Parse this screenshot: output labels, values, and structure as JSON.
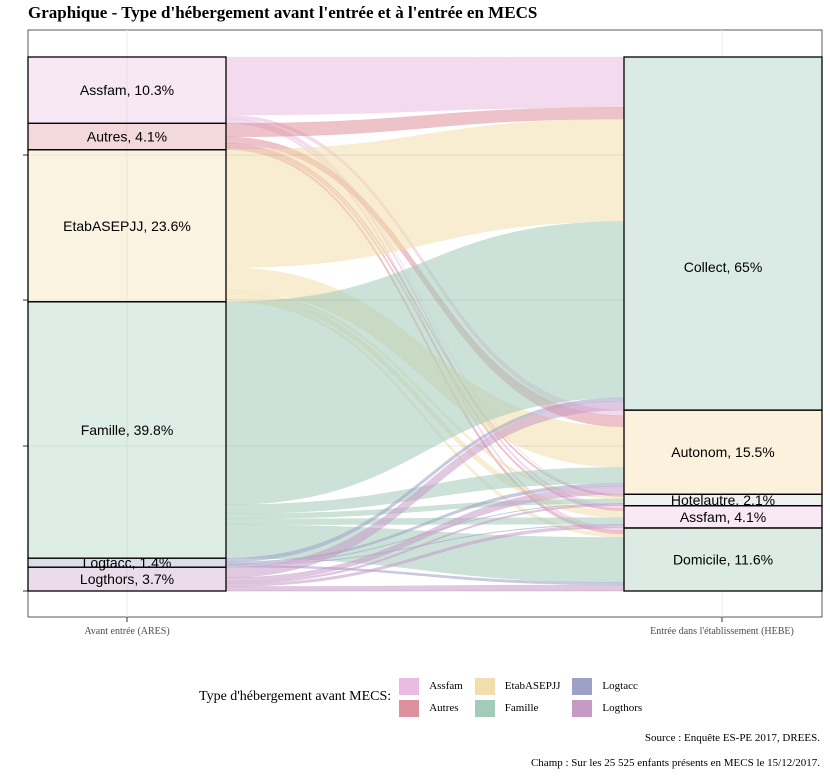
{
  "title": "Graphique - Type d'hébergement avant l'entrée et à l'entrée en MECS",
  "source": "Source : Enquête ES-PE 2017, DREES.",
  "scope": "Champ : Sur les 25 525 enfants présents en MECS le 15/12/2017.",
  "colors": {
    "Assfam": "#ebbce2",
    "Autres": "#de909c",
    "EtabASEPJJ": "#f2deaa",
    "Famille": "#a3cbb9",
    "Logtacc": "#9ea0c6",
    "Logthors": "#c79ac6"
  },
  "chart_data": {
    "type": "sankey",
    "axes": [
      {
        "key": "ARES",
        "label": "Avant entrée (ARES)"
      },
      {
        "key": "HEBE",
        "label": "Entrée dans l'établissement (HEBE)"
      }
    ],
    "legend_title": "Type d'hébergement avant MECS:",
    "legend": [
      "Assfam",
      "Autres",
      "EtabASEPJJ",
      "Famille",
      "Logtacc",
      "Logthors"
    ],
    "left_nodes": [
      {
        "name": "Assfam",
        "pct": 10.3,
        "label": "Assfam, 10.3%"
      },
      {
        "name": "Autres",
        "pct": 4.1,
        "label": "Autres, 4.1%"
      },
      {
        "name": "EtabASEPJJ",
        "pct": 23.6,
        "label": "EtabASEPJJ, 23.6%"
      },
      {
        "name": "Famille",
        "pct": 39.8,
        "label": "Famille, 39.8%"
      },
      {
        "name": "Logtacc",
        "pct": 1.4,
        "label": "Logtacc, 1.4%"
      },
      {
        "name": "Logthors",
        "pct": 3.7,
        "label": "Logthors, 3.7%"
      }
    ],
    "right_nodes": [
      {
        "name": "Collect",
        "pct": 65,
        "label": "Collect, 65%"
      },
      {
        "name": "Autonom",
        "pct": 15.5,
        "label": "Autonom, 15.5%"
      },
      {
        "name": "Hotelautre",
        "pct": 2.1,
        "label": "Hotelautre, 2.1%"
      },
      {
        "name": "Assfam",
        "pct": 4.1,
        "label": "Assfam, 4.1%"
      },
      {
        "name": "Domicile",
        "pct": 11.6,
        "label": "Domicile, 11.6%"
      }
    ],
    "flows": [
      {
        "from": "Assfam",
        "to": "Collect",
        "value": 9.0
      },
      {
        "from": "Assfam",
        "to": "Autonom",
        "value": 0.5
      },
      {
        "from": "Assfam",
        "to": "Hotelautre",
        "value": 0.1
      },
      {
        "from": "Assfam",
        "to": "Assfam",
        "value": 0.4
      },
      {
        "from": "Assfam",
        "to": "Domicile",
        "value": 0.3
      },
      {
        "from": "Autres",
        "to": "Collect",
        "value": 2.1
      },
      {
        "from": "Autres",
        "to": "Autonom",
        "value": 1.0
      },
      {
        "from": "Autres",
        "to": "Hotelautre",
        "value": 0.3
      },
      {
        "from": "Autres",
        "to": "Assfam",
        "value": 0.3
      },
      {
        "from": "Autres",
        "to": "Domicile",
        "value": 0.4
      },
      {
        "from": "EtabASEPJJ",
        "to": "Collect",
        "value": 18.3
      },
      {
        "from": "EtabASEPJJ",
        "to": "Autonom",
        "value": 3.6
      },
      {
        "from": "EtabASEPJJ",
        "to": "Hotelautre",
        "value": 0.4
      },
      {
        "from": "EtabASEPJJ",
        "to": "Assfam",
        "value": 0.9
      },
      {
        "from": "EtabASEPJJ",
        "to": "Domicile",
        "value": 0.4
      },
      {
        "from": "Famille",
        "to": "Collect",
        "value": 31.5
      },
      {
        "from": "Famille",
        "to": "Autonom",
        "value": 1.4
      },
      {
        "from": "Famille",
        "to": "Hotelautre",
        "value": 0.8
      },
      {
        "from": "Famille",
        "to": "Assfam",
        "value": 0.9
      },
      {
        "from": "Famille",
        "to": "Domicile",
        "value": 5.2
      },
      {
        "from": "Logtacc",
        "to": "Collect",
        "value": 0.6
      },
      {
        "from": "Logtacc",
        "to": "Autonom",
        "value": 0.3
      },
      {
        "from": "Logtacc",
        "to": "Hotelautre",
        "value": 0.1
      },
      {
        "from": "Logtacc",
        "to": "Assfam",
        "value": 0.1
      },
      {
        "from": "Logtacc",
        "to": "Domicile",
        "value": 0.3
      },
      {
        "from": "Logthors",
        "to": "Collect",
        "value": 1.6
      },
      {
        "from": "Logthors",
        "to": "Autonom",
        "value": 0.7
      },
      {
        "from": "Logthors",
        "to": "Hotelautre",
        "value": 0.3
      },
      {
        "from": "Logthors",
        "to": "Assfam",
        "value": 0.4
      },
      {
        "from": "Logthors",
        "to": "Domicile",
        "value": 0.7
      }
    ]
  }
}
